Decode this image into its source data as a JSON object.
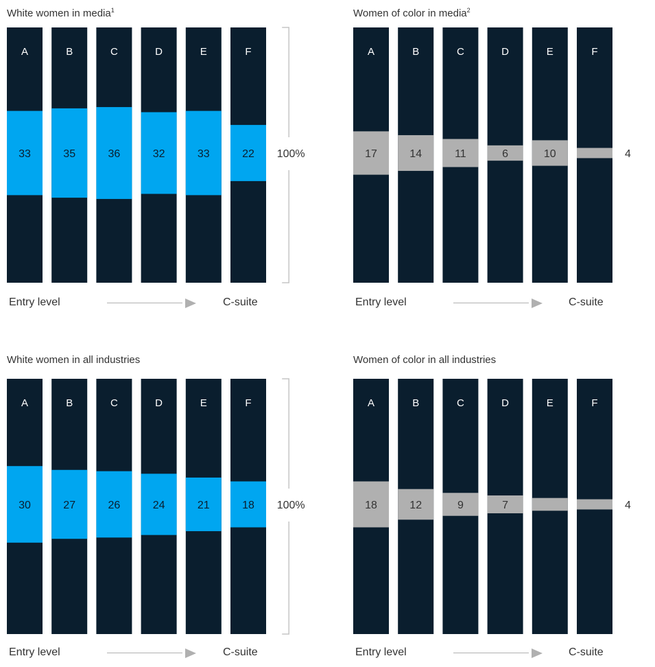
{
  "colors": {
    "bar_background": "#0a1e2e",
    "segment_white": "#00a6f0",
    "segment_color": "#b0b0b0",
    "bracket": "#c6c6c6",
    "text": "#333333"
  },
  "axis_labels": {
    "start": "Entry level",
    "end": "C-suite"
  },
  "chart_data": [
    {
      "type": "bar",
      "title": "White women in media",
      "title_footnote": "1",
      "categories": [
        "A",
        "B",
        "C",
        "D",
        "E",
        "F"
      ],
      "values": [
        33,
        35,
        36,
        32,
        33,
        22
      ],
      "segment_color": "#00a6f0",
      "bracket_label": "100%"
    },
    {
      "type": "bar",
      "title": "Women of color in media",
      "title_footnote": "2",
      "categories": [
        "A",
        "B",
        "C",
        "D",
        "E",
        "F"
      ],
      "values": [
        17,
        14,
        11,
        6,
        10,
        4
      ],
      "segment_color": "#b0b0b0"
    },
    {
      "type": "bar",
      "title": "White women in all industries",
      "title_footnote": "",
      "categories": [
        "A",
        "B",
        "C",
        "D",
        "E",
        "F"
      ],
      "values": [
        30,
        27,
        26,
        24,
        21,
        18
      ],
      "segment_color": "#00a6f0",
      "bracket_label": "100%"
    },
    {
      "type": "bar",
      "title": "Women of color in all industries",
      "title_footnote": "",
      "categories": [
        "A",
        "B",
        "C",
        "D",
        "E",
        "F"
      ],
      "values": [
        18,
        12,
        9,
        7,
        5,
        4
      ],
      "segment_color": "#b0b0b0"
    }
  ]
}
